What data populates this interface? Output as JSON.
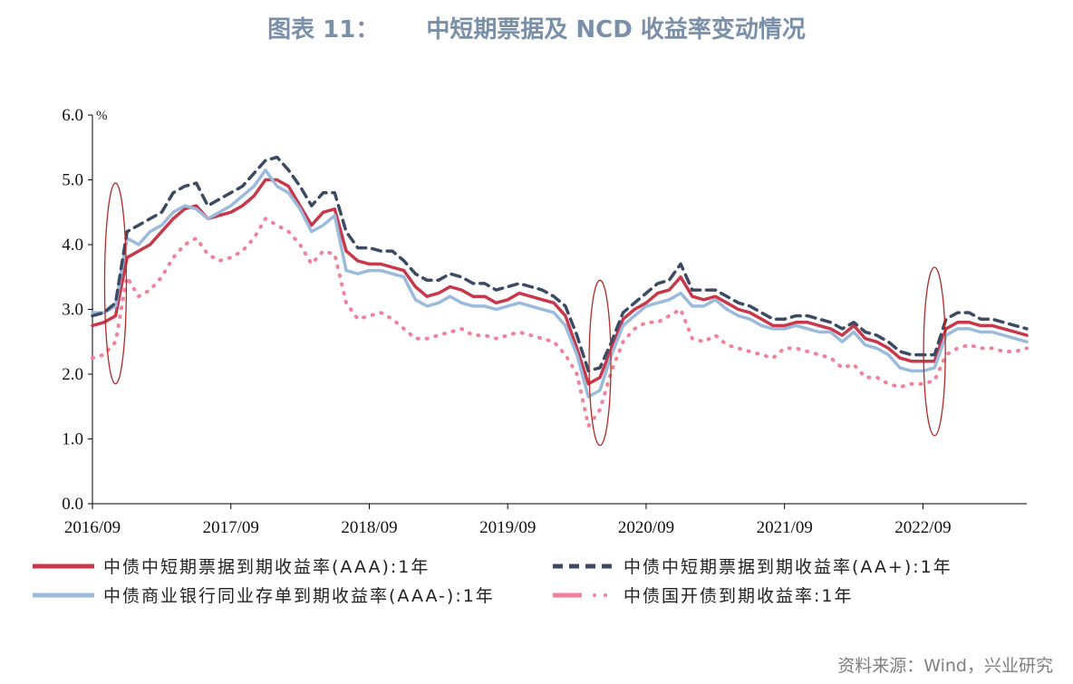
{
  "title": {
    "label": "图表 11：",
    "text": "中短期票据及 NCD 收益率变动情况"
  },
  "source": "资料来源：Wind，兴业研究",
  "colors": {
    "aaa": "#c8384a",
    "aaplus": "#3d4a63",
    "ncd": "#9bbadc",
    "cdb": "#f0829a"
  },
  "chart_data": {
    "type": "line",
    "unit": "%",
    "ylim": [
      0,
      6
    ],
    "yticks": [
      "0.0",
      "1.0",
      "2.0",
      "3.0",
      "4.0",
      "5.0",
      "6.0"
    ],
    "xlim": [
      "2016-09",
      "2023-06"
    ],
    "xticks": [
      "2016/09",
      "2017/09",
      "2018/09",
      "2019/09",
      "2020/09",
      "2021/09",
      "2022/09"
    ],
    "x": [
      "2016-09",
      "2016-10",
      "2016-11",
      "2016-12",
      "2017-01",
      "2017-02",
      "2017-03",
      "2017-04",
      "2017-05",
      "2017-06",
      "2017-07",
      "2017-08",
      "2017-09",
      "2017-10",
      "2017-11",
      "2017-12",
      "2018-01",
      "2018-02",
      "2018-03",
      "2018-04",
      "2018-05",
      "2018-06",
      "2018-07",
      "2018-08",
      "2018-09",
      "2018-10",
      "2018-11",
      "2018-12",
      "2019-01",
      "2019-02",
      "2019-03",
      "2019-04",
      "2019-05",
      "2019-06",
      "2019-07",
      "2019-08",
      "2019-09",
      "2019-10",
      "2019-11",
      "2019-12",
      "2020-01",
      "2020-02",
      "2020-03",
      "2020-04",
      "2020-05",
      "2020-06",
      "2020-07",
      "2020-08",
      "2020-09",
      "2020-10",
      "2020-11",
      "2020-12",
      "2021-01",
      "2021-02",
      "2021-03",
      "2021-04",
      "2021-05",
      "2021-06",
      "2021-07",
      "2021-08",
      "2021-09",
      "2021-10",
      "2021-11",
      "2021-12",
      "2022-01",
      "2022-02",
      "2022-03",
      "2022-04",
      "2022-05",
      "2022-06",
      "2022-07",
      "2022-08",
      "2022-09",
      "2022-10",
      "2022-11",
      "2022-12",
      "2023-01",
      "2023-02",
      "2023-03",
      "2023-04",
      "2023-05",
      "2023-06"
    ],
    "series": [
      {
        "name": "中债中短期票据到期收益率(AAA):1年",
        "key": "aaa",
        "style": "solid",
        "values": [
          2.75,
          2.8,
          2.9,
          3.8,
          3.9,
          4.0,
          4.2,
          4.4,
          4.55,
          4.6,
          4.4,
          4.45,
          4.5,
          4.6,
          4.75,
          5.0,
          5.0,
          4.9,
          4.6,
          4.3,
          4.5,
          4.55,
          3.9,
          3.75,
          3.7,
          3.7,
          3.65,
          3.6,
          3.35,
          3.2,
          3.25,
          3.35,
          3.3,
          3.2,
          3.2,
          3.1,
          3.15,
          3.25,
          3.2,
          3.15,
          3.1,
          2.9,
          2.4,
          1.85,
          1.95,
          2.4,
          2.85,
          3.0,
          3.1,
          3.25,
          3.3,
          3.5,
          3.2,
          3.15,
          3.2,
          3.1,
          3.0,
          2.95,
          2.85,
          2.75,
          2.75,
          2.8,
          2.8,
          2.75,
          2.7,
          2.6,
          2.75,
          2.55,
          2.5,
          2.4,
          2.25,
          2.2,
          2.2,
          2.2,
          2.7,
          2.8,
          2.8,
          2.75,
          2.75,
          2.7,
          2.65,
          2.6
        ]
      },
      {
        "name": "中债中短期票据到期收益率(AA+):1年",
        "key": "aaplus",
        "style": "dash",
        "values": [
          2.9,
          2.95,
          3.1,
          4.2,
          4.3,
          4.4,
          4.5,
          4.8,
          4.9,
          4.95,
          4.6,
          4.7,
          4.8,
          4.9,
          5.1,
          5.3,
          5.35,
          5.15,
          4.9,
          4.6,
          4.8,
          4.8,
          4.2,
          3.95,
          3.95,
          3.9,
          3.9,
          3.75,
          3.55,
          3.45,
          3.45,
          3.55,
          3.5,
          3.4,
          3.4,
          3.3,
          3.35,
          3.4,
          3.35,
          3.3,
          3.2,
          3.05,
          2.6,
          2.05,
          2.1,
          2.5,
          2.95,
          3.1,
          3.25,
          3.4,
          3.45,
          3.7,
          3.3,
          3.3,
          3.3,
          3.2,
          3.1,
          3.05,
          2.95,
          2.85,
          2.85,
          2.9,
          2.9,
          2.85,
          2.8,
          2.7,
          2.8,
          2.65,
          2.6,
          2.5,
          2.35,
          2.3,
          2.3,
          2.3,
          2.85,
          2.95,
          2.95,
          2.85,
          2.85,
          2.8,
          2.75,
          2.7
        ]
      },
      {
        "name": "中债商业银行同业存单到期收益率(AAA-):1年",
        "key": "ncd",
        "style": "solid",
        "values": [
          2.95,
          2.95,
          3.05,
          4.1,
          4.0,
          4.2,
          4.3,
          4.5,
          4.6,
          4.55,
          4.4,
          4.5,
          4.6,
          4.75,
          4.9,
          5.15,
          4.9,
          4.8,
          4.55,
          4.2,
          4.3,
          4.45,
          3.6,
          3.55,
          3.6,
          3.6,
          3.55,
          3.5,
          3.15,
          3.05,
          3.1,
          3.2,
          3.1,
          3.05,
          3.05,
          3.0,
          3.05,
          3.1,
          3.05,
          3.0,
          2.95,
          2.75,
          2.3,
          1.65,
          1.75,
          2.3,
          2.75,
          2.9,
          3.05,
          3.1,
          3.15,
          3.25,
          3.05,
          3.05,
          3.15,
          3.0,
          2.9,
          2.85,
          2.75,
          2.7,
          2.7,
          2.75,
          2.7,
          2.65,
          2.65,
          2.5,
          2.65,
          2.45,
          2.4,
          2.3,
          2.1,
          2.05,
          2.05,
          2.1,
          2.6,
          2.7,
          2.7,
          2.65,
          2.65,
          2.6,
          2.55,
          2.5
        ]
      },
      {
        "name": "中债国开债到期收益率:1年",
        "key": "cdb",
        "style": "dashdot",
        "values": [
          2.25,
          2.3,
          2.5,
          3.5,
          3.2,
          3.3,
          3.5,
          3.8,
          4.0,
          4.1,
          3.85,
          3.75,
          3.8,
          3.9,
          4.1,
          4.4,
          4.3,
          4.2,
          4.0,
          3.7,
          3.9,
          3.85,
          3.1,
          2.85,
          2.9,
          2.95,
          2.85,
          2.7,
          2.55,
          2.55,
          2.6,
          2.65,
          2.7,
          2.6,
          2.6,
          2.55,
          2.6,
          2.65,
          2.6,
          2.55,
          2.5,
          2.3,
          2.0,
          1.2,
          1.45,
          2.05,
          2.5,
          2.7,
          2.8,
          2.8,
          2.9,
          3.0,
          2.55,
          2.5,
          2.6,
          2.45,
          2.4,
          2.35,
          2.3,
          2.25,
          2.4,
          2.4,
          2.35,
          2.3,
          2.25,
          2.1,
          2.15,
          1.95,
          1.95,
          1.85,
          1.8,
          1.85,
          1.85,
          1.9,
          2.3,
          2.4,
          2.45,
          2.4,
          2.4,
          2.35,
          2.35,
          2.4
        ]
      }
    ],
    "annotations": [
      {
        "shape": "ellipse",
        "x": "2016-11",
        "y_range": [
          1.85,
          4.95
        ]
      },
      {
        "shape": "ellipse",
        "x": "2020-05",
        "y_range": [
          0.9,
          3.45
        ]
      },
      {
        "shape": "ellipse",
        "x": "2022-10",
        "y_range": [
          1.05,
          3.65
        ]
      }
    ]
  }
}
